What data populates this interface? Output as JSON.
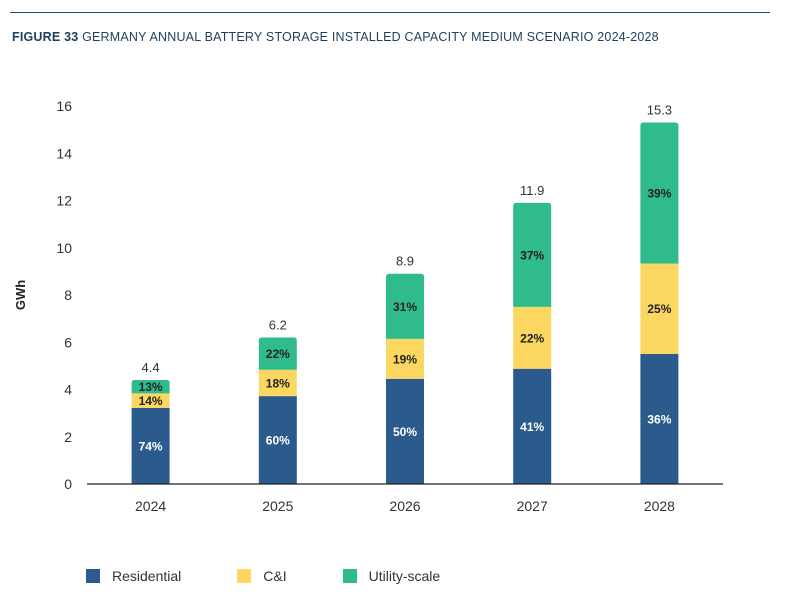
{
  "figure": {
    "number": "FIGURE 33",
    "title": "GERMANY ANNUAL BATTERY STORAGE INSTALLED CAPACITY MEDIUM SCENARIO 2024-2028"
  },
  "colors": {
    "residential": "#2b5a8c",
    "ci": "#fbd661",
    "utility": "#2fbb8b",
    "axis": "#222222",
    "text": "#333333"
  },
  "chart_data": {
    "type": "bar",
    "stacked": true,
    "title": "GERMANY ANNUAL BATTERY STORAGE INSTALLED CAPACITY MEDIUM SCENARIO 2024-2028",
    "xlabel": "",
    "ylabel": "GWh",
    "ylim": [
      0,
      16
    ],
    "yticks": [
      0,
      2,
      4,
      6,
      8,
      10,
      12,
      14,
      16
    ],
    "grid": false,
    "legend_position": "bottom",
    "categories": [
      "2024",
      "2025",
      "2026",
      "2027",
      "2028"
    ],
    "totals": [
      4.4,
      6.2,
      8.9,
      11.9,
      15.3
    ],
    "total_labels": [
      "4.4",
      "6.2",
      "8.9",
      "11.9",
      "15.3"
    ],
    "series": [
      {
        "name": "Residential",
        "color_key": "residential",
        "label_color": "#ffffff",
        "share_percent": [
          74,
          60,
          50,
          41,
          36
        ],
        "labels": [
          "74%",
          "60%",
          "50%",
          "41%",
          "36%"
        ]
      },
      {
        "name": "C&I",
        "color_key": "ci",
        "label_color": "#222222",
        "share_percent": [
          14,
          18,
          19,
          22,
          25
        ],
        "labels": [
          "14%",
          "18%",
          "19%",
          "22%",
          "25%"
        ]
      },
      {
        "name": "Utility-scale",
        "color_key": "utility",
        "label_color": "#222222",
        "share_percent": [
          13,
          22,
          31,
          37,
          39
        ],
        "labels": [
          "13%",
          "22%",
          "31%",
          "37%",
          "39%"
        ]
      }
    ]
  }
}
